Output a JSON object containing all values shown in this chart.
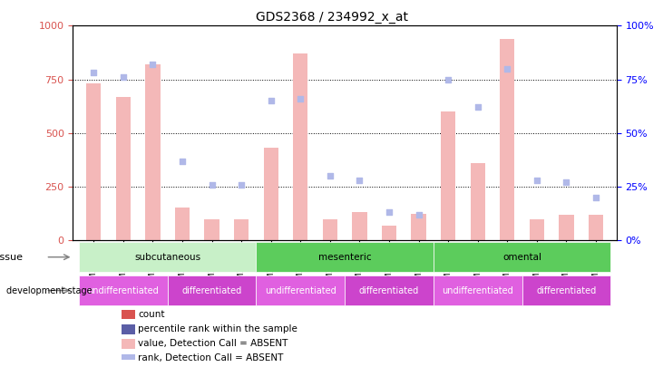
{
  "title": "GDS2368 / 234992_x_at",
  "samples": [
    "GSM30645",
    "GSM30646",
    "GSM30647",
    "GSM30654",
    "GSM30655",
    "GSM30656",
    "GSM30648",
    "GSM30649",
    "GSM30650",
    "GSM30657",
    "GSM30658",
    "GSM30659",
    "GSM30651",
    "GSM30652",
    "GSM30653",
    "GSM30660",
    "GSM30661",
    "GSM30662"
  ],
  "bar_values": [
    730,
    670,
    820,
    155,
    100,
    100,
    430,
    870,
    100,
    130,
    70,
    125,
    600,
    360,
    940,
    100,
    120,
    120
  ],
  "bar_absent": [
    true,
    true,
    true,
    true,
    true,
    true,
    true,
    true,
    true,
    true,
    true,
    true,
    true,
    true,
    true,
    true,
    true,
    true
  ],
  "dot_values": [
    78,
    76,
    82,
    37,
    26,
    26,
    65,
    66,
    30,
    28,
    13,
    12,
    75,
    62,
    80,
    28,
    27,
    20
  ],
  "dot_absent": [
    true,
    true,
    true,
    true,
    true,
    true,
    true,
    true,
    true,
    true,
    true,
    true,
    true,
    true,
    true,
    true,
    true,
    true
  ],
  "bar_color_present": "#d9534f",
  "bar_color_absent": "#f4b8b8",
  "dot_color_present": "#5b5ea6",
  "dot_color_absent": "#b0b8e8",
  "ylim_left": [
    0,
    1000
  ],
  "ylim_right": [
    0,
    100
  ],
  "yticks_left": [
    0,
    250,
    500,
    750,
    1000
  ],
  "yticks_right": [
    0,
    25,
    50,
    75,
    100
  ],
  "tissue_groups": [
    {
      "label": "subcutaneous",
      "start": 0,
      "end": 6,
      "color": "#c8f0c8"
    },
    {
      "label": "mesenteric",
      "start": 6,
      "end": 12,
      "color": "#5ccc5c"
    },
    {
      "label": "omental",
      "start": 12,
      "end": 18,
      "color": "#5ccc5c"
    }
  ],
  "tissue_colors": [
    "#c8f0c8",
    "#5ccc5c",
    "#5ccc5c"
  ],
  "dev_groups": [
    {
      "label": "undifferentiated",
      "start": 0,
      "end": 3,
      "color": "#e060e0"
    },
    {
      "label": "differentiated",
      "start": 3,
      "end": 6,
      "color": "#cc44cc"
    },
    {
      "label": "undifferentiated",
      "start": 6,
      "end": 9,
      "color": "#e060e0"
    },
    {
      "label": "differentiated",
      "start": 9,
      "end": 12,
      "color": "#cc44cc"
    },
    {
      "label": "undifferentiated",
      "start": 12,
      "end": 15,
      "color": "#e060e0"
    },
    {
      "label": "differentiated",
      "start": 15,
      "end": 18,
      "color": "#cc44cc"
    }
  ],
  "legend_items": [
    {
      "label": "count",
      "color": "#d9534f",
      "marker": "s"
    },
    {
      "label": "percentile rank within the sample",
      "color": "#5b5ea6",
      "marker": "s"
    },
    {
      "label": "value, Detection Call = ABSENT",
      "color": "#f4b8b8",
      "marker": "s"
    },
    {
      "label": "rank, Detection Call = ABSENT",
      "color": "#b0b8e8",
      "marker": "s"
    }
  ],
  "tissue_label": "tissue",
  "dev_label": "development stage"
}
